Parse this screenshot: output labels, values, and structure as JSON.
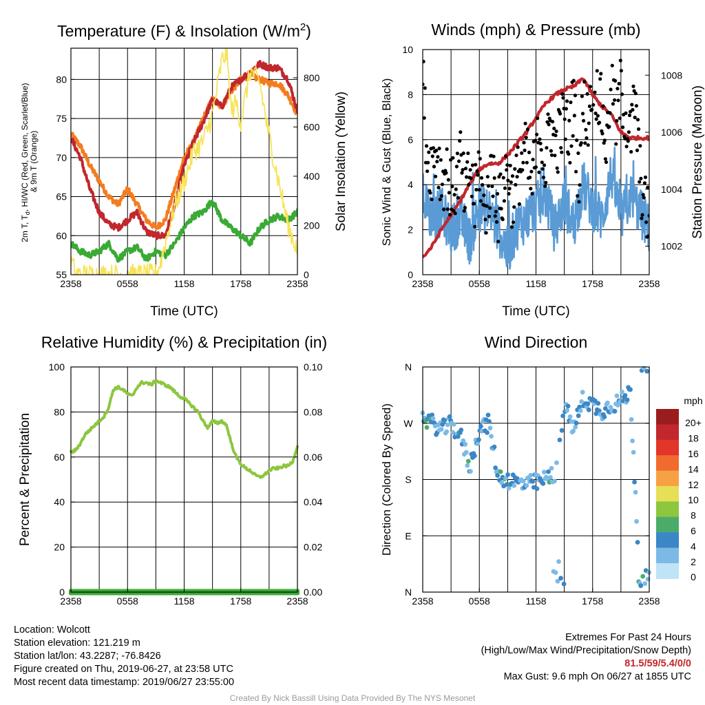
{
  "chart_data": [
    {
      "id": "temp",
      "type": "line",
      "title": "Temperature (F) & Insolation (W/m2)",
      "xlabel": "Time (UTC)",
      "ylabel": "2m T, Td, HI/WC (Red, Green, Scarlet/Blue) & 9m T (Orange)",
      "y2label": "Solar Insolation (Yellow)",
      "x_ticks": [
        "2358",
        "0558",
        "1158",
        "1758",
        "2358"
      ],
      "xlim": [
        0,
        24
      ],
      "ylim": [
        55,
        84
      ],
      "y_ticks": [
        55,
        60,
        65,
        70,
        75,
        80
      ],
      "y2lim": [
        0,
        920
      ],
      "y2_ticks": [
        0,
        200,
        400,
        600,
        800
      ],
      "grid": true,
      "series": [
        {
          "color": "#f47c20",
          "axis": "left",
          "x": [
            0,
            1,
            2,
            3,
            4,
            5,
            6,
            7,
            8,
            9,
            10,
            11,
            12,
            13,
            14,
            15,
            16,
            17,
            18,
            19,
            20,
            21,
            22,
            23,
            24
          ],
          "values": [
            73,
            71.5,
            69,
            67,
            65,
            64,
            66,
            64,
            62,
            61,
            62,
            66,
            70,
            72,
            75,
            77.5,
            76.5,
            78.5,
            80,
            80.5,
            80,
            79.5,
            79.5,
            78,
            75.5
          ]
        },
        {
          "color": "#c1272d",
          "axis": "left",
          "x": [
            0,
            1,
            2,
            3,
            4,
            5,
            6,
            7,
            8,
            9,
            10,
            11,
            12,
            13,
            14,
            15,
            16,
            17,
            18,
            19,
            20,
            21,
            22,
            23,
            24
          ],
          "values": [
            72.5,
            70,
            66,
            63,
            61.5,
            61,
            62,
            63,
            60.5,
            60,
            60,
            64,
            69,
            72,
            74.5,
            77.5,
            76.5,
            79,
            80,
            81,
            82,
            81.5,
            81.5,
            80,
            76
          ]
        },
        {
          "color": "#3aaa35",
          "axis": "left",
          "x": [
            0,
            1,
            2,
            3,
            4,
            5,
            6,
            7,
            8,
            9,
            10,
            11,
            12,
            13,
            14,
            15,
            16,
            17,
            18,
            19,
            20,
            21,
            22,
            23,
            24
          ],
          "values": [
            59,
            58,
            57.5,
            58,
            59,
            57,
            58,
            58.5,
            57,
            58,
            57.5,
            59,
            61,
            62.5,
            63,
            64.5,
            62,
            61,
            60,
            59,
            61,
            62,
            62.5,
            62,
            63
          ]
        },
        {
          "color": "#f7e358",
          "axis": "right",
          "x": [
            0,
            0.5,
            1,
            2,
            3,
            4,
            5,
            6,
            7,
            8,
            9,
            9.5,
            10,
            11,
            12,
            13,
            14,
            15,
            16,
            16.5,
            17,
            17.5,
            18,
            19,
            20,
            21,
            22,
            23,
            24
          ],
          "values": [
            60,
            5,
            0,
            0,
            0,
            0,
            0,
            0,
            0,
            0,
            0,
            50,
            130,
            280,
            380,
            500,
            540,
            650,
            870,
            900,
            660,
            700,
            620,
            830,
            780,
            560,
            380,
            200,
            100
          ]
        }
      ]
    },
    {
      "id": "winds",
      "type": "scatter",
      "title": "Winds (mph) & Pressure (mb)",
      "xlabel": "Time (UTC)",
      "ylabel": "Sonic Wind & Gust (Blue, Black)",
      "y2label": "Station Pressure (Maroon)",
      "x_ticks": [
        "2358",
        "0558",
        "1158",
        "1758",
        "2358"
      ],
      "xlim": [
        0,
        24
      ],
      "ylim": [
        0,
        10
      ],
      "y_ticks": [
        0,
        2,
        4,
        6,
        8,
        10
      ],
      "y2lim": [
        1001,
        1008.9
      ],
      "y2_ticks": [
        1002,
        1004,
        1006,
        1008
      ],
      "grid": true,
      "series": [
        {
          "color": "#5a9bd5",
          "axis": "left",
          "x": [
            0,
            1,
            2,
            3,
            4,
            5,
            6,
            7,
            8,
            9,
            10,
            11,
            12,
            13,
            14,
            15,
            16,
            17,
            18,
            19,
            20,
            21,
            22,
            23,
            24
          ],
          "values": [
            3.5,
            2.5,
            2.8,
            2,
            2.5,
            1.5,
            3,
            2.8,
            2,
            1,
            2.2,
            2.5,
            3,
            3.5,
            2,
            3.3,
            2.2,
            4,
            3,
            2.5,
            4.5,
            2.5,
            3.5,
            2.8,
            2
          ]
        },
        {
          "color": "#c1272d",
          "axis": "right",
          "x": [
            0,
            1,
            2,
            3,
            4,
            5,
            6,
            7,
            8,
            9,
            10,
            11,
            12,
            13,
            14,
            15,
            16,
            17,
            18,
            19,
            20,
            21,
            22,
            23,
            24
          ],
          "values": [
            1001.6,
            1002,
            1002.6,
            1003.1,
            1003.6,
            1004.2,
            1004.7,
            1004.9,
            1004.9,
            1005.2,
            1005.6,
            1006,
            1006.5,
            1007,
            1007.3,
            1007.5,
            1007.6,
            1007.9,
            1007.3,
            1006.9,
            1006.6,
            1006,
            1005.8,
            1005.8,
            1005.8
          ]
        },
        {
          "color": "#000000",
          "axis": "left",
          "x": [
            0,
            0.5,
            1,
            1.5,
            2,
            2.5,
            3,
            3.5,
            4,
            4.5,
            5,
            5.5,
            6,
            6.5,
            7,
            7.5,
            8,
            8.5,
            9,
            9.5,
            10,
            10.5,
            11,
            11.5,
            12,
            12.5,
            13,
            13.5,
            14,
            14.5,
            15,
            15.5,
            16,
            16.5,
            17,
            17.5,
            18,
            18.5,
            19,
            19.5,
            20,
            20.5,
            21,
            21.5,
            22,
            22.5,
            23,
            23.5,
            24
          ],
          "values": [
            8.7,
            5.2,
            4.8,
            5.6,
            4.2,
            4.6,
            3.6,
            4,
            5.2,
            3.2,
            4.8,
            3,
            5,
            2.6,
            3.8,
            4.6,
            2.8,
            3.6,
            4.9,
            3.4,
            4.2,
            5,
            5.4,
            3.8,
            5.3,
            6.4,
            4.5,
            7,
            5.6,
            6.2,
            7,
            6,
            7.8,
            4.2,
            7.5,
            6.8,
            9,
            8.2,
            7.2,
            5.5,
            9.5,
            6.6,
            8.3,
            7,
            6,
            7.8,
            4.5,
            3,
            2.6
          ]
        }
      ]
    },
    {
      "id": "rh",
      "type": "line",
      "title": "Relative Humidity (%) & Precipitation (in)",
      "ylabel": "Percent & Precipitation",
      "x_ticks": [
        "2358",
        "0558",
        "1158",
        "1758",
        "2358"
      ],
      "xlim": [
        0,
        24
      ],
      "ylim": [
        0,
        100
      ],
      "y_ticks": [
        0,
        20,
        40,
        60,
        80,
        100
      ],
      "y2_ticks": [
        "0.00",
        "0.02",
        "0.04",
        "0.06",
        "0.08",
        "0.10"
      ],
      "grid": true,
      "series": [
        {
          "color": "#8dc63f",
          "axis": "left",
          "x": [
            0,
            0.5,
            1,
            1.5,
            2,
            2.5,
            3,
            3.5,
            4,
            4.5,
            5,
            5.5,
            6,
            6.5,
            7,
            7.5,
            8,
            8.5,
            9,
            9.5,
            10,
            10.5,
            11,
            11.5,
            12,
            12.5,
            13,
            13.5,
            14,
            14.5,
            15,
            15.5,
            16,
            16.5,
            17,
            17.5,
            18,
            18.5,
            19,
            19.5,
            20,
            20.5,
            21,
            21.5,
            22,
            22.5,
            23,
            23.5,
            24
          ],
          "values": [
            62,
            63,
            66,
            70,
            72,
            74,
            76,
            78,
            82,
            90,
            91,
            90,
            88,
            87,
            91,
            93,
            93,
            92,
            94,
            93,
            92,
            91,
            89,
            87,
            86,
            84,
            82,
            80,
            76,
            73,
            76,
            75,
            76,
            74,
            66,
            60,
            57,
            55,
            54,
            52,
            51,
            52,
            54,
            55,
            55,
            56,
            56,
            58,
            65
          ]
        },
        {
          "color": "#3aaa35",
          "axis": "left",
          "x": [
            0,
            24
          ],
          "values": [
            0,
            0
          ]
        }
      ]
    },
    {
      "id": "wdir",
      "type": "scatter",
      "title": "Wind Direction",
      "ylabel": "Direction (Colored By Speed)",
      "x_ticks": [
        "2358",
        "0558",
        "1158",
        "1758",
        "2358"
      ],
      "xlim": [
        0,
        24
      ],
      "ylim": [
        0,
        360
      ],
      "y_tick_labels": [
        "N",
        "E",
        "S",
        "W",
        "N"
      ],
      "grid": true,
      "colorbar": {
        "unit": "mph",
        "labels": [
          "20+",
          "18",
          "16",
          "14",
          "12",
          "10",
          "8",
          "6",
          "4",
          "2",
          "0"
        ],
        "colors": [
          "#9b1c1c",
          "#c1272d",
          "#e2362b",
          "#f16b2c",
          "#f7a145",
          "#e7df56",
          "#8dc63f",
          "#4bac6a",
          "#3b86c6",
          "#7cbae6",
          "#bfe3f7"
        ]
      }
    }
  ],
  "info_left": [
    "Location: Wolcott",
    "Station elevation: 121.219 m",
    "Station lat/lon: 43.2287; -76.8426",
    "Figure created on Thu, 2019-06-27, at 23:58 UTC",
    "Most recent data timestamp: 2019/06/27 23:55:00"
  ],
  "info_right": {
    "title": "Extremes For Past 24 Hours",
    "subtitle": "(High/Low/Max Wind/Precipitation/Snow Depth)",
    "values": "81.5/59/5.4/0/0",
    "gust": "Max Gust: 9.6 mph On 06/27 at 1855 UTC"
  },
  "credit": "Created By Nick Bassill Using Data Provided By The NYS Mesonet"
}
